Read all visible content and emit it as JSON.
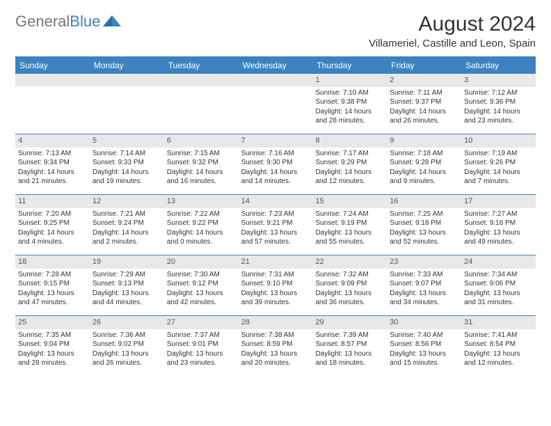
{
  "brand": {
    "part1": "General",
    "part2": "Blue"
  },
  "title": "August 2024",
  "location": "Villameriel, Castille and Leon, Spain",
  "colors": {
    "header_bg": "#3b83c0",
    "header_text": "#ffffff",
    "daynum_bg": "#e8e8e8",
    "border": "#3b83c0",
    "text": "#333333"
  },
  "dayNames": [
    "Sunday",
    "Monday",
    "Tuesday",
    "Wednesday",
    "Thursday",
    "Friday",
    "Saturday"
  ],
  "weeks": [
    [
      null,
      null,
      null,
      null,
      {
        "n": "1",
        "sr": "7:10 AM",
        "ss": "9:38 PM",
        "dl": "14 hours and 28 minutes."
      },
      {
        "n": "2",
        "sr": "7:11 AM",
        "ss": "9:37 PM",
        "dl": "14 hours and 26 minutes."
      },
      {
        "n": "3",
        "sr": "7:12 AM",
        "ss": "9:36 PM",
        "dl": "14 hours and 23 minutes."
      }
    ],
    [
      {
        "n": "4",
        "sr": "7:13 AM",
        "ss": "9:34 PM",
        "dl": "14 hours and 21 minutes."
      },
      {
        "n": "5",
        "sr": "7:14 AM",
        "ss": "9:33 PM",
        "dl": "14 hours and 19 minutes."
      },
      {
        "n": "6",
        "sr": "7:15 AM",
        "ss": "9:32 PM",
        "dl": "14 hours and 16 minutes."
      },
      {
        "n": "7",
        "sr": "7:16 AM",
        "ss": "9:30 PM",
        "dl": "14 hours and 14 minutes."
      },
      {
        "n": "8",
        "sr": "7:17 AM",
        "ss": "9:29 PM",
        "dl": "14 hours and 12 minutes."
      },
      {
        "n": "9",
        "sr": "7:18 AM",
        "ss": "9:28 PM",
        "dl": "14 hours and 9 minutes."
      },
      {
        "n": "10",
        "sr": "7:19 AM",
        "ss": "9:26 PM",
        "dl": "14 hours and 7 minutes."
      }
    ],
    [
      {
        "n": "11",
        "sr": "7:20 AM",
        "ss": "9:25 PM",
        "dl": "14 hours and 4 minutes."
      },
      {
        "n": "12",
        "sr": "7:21 AM",
        "ss": "9:24 PM",
        "dl": "14 hours and 2 minutes."
      },
      {
        "n": "13",
        "sr": "7:22 AM",
        "ss": "9:22 PM",
        "dl": "14 hours and 0 minutes."
      },
      {
        "n": "14",
        "sr": "7:23 AM",
        "ss": "9:21 PM",
        "dl": "13 hours and 57 minutes."
      },
      {
        "n": "15",
        "sr": "7:24 AM",
        "ss": "9:19 PM",
        "dl": "13 hours and 55 minutes."
      },
      {
        "n": "16",
        "sr": "7:25 AM",
        "ss": "9:18 PM",
        "dl": "13 hours and 52 minutes."
      },
      {
        "n": "17",
        "sr": "7:27 AM",
        "ss": "9:16 PM",
        "dl": "13 hours and 49 minutes."
      }
    ],
    [
      {
        "n": "18",
        "sr": "7:28 AM",
        "ss": "9:15 PM",
        "dl": "13 hours and 47 minutes."
      },
      {
        "n": "19",
        "sr": "7:29 AM",
        "ss": "9:13 PM",
        "dl": "13 hours and 44 minutes."
      },
      {
        "n": "20",
        "sr": "7:30 AM",
        "ss": "9:12 PM",
        "dl": "13 hours and 42 minutes."
      },
      {
        "n": "21",
        "sr": "7:31 AM",
        "ss": "9:10 PM",
        "dl": "13 hours and 39 minutes."
      },
      {
        "n": "22",
        "sr": "7:32 AM",
        "ss": "9:09 PM",
        "dl": "13 hours and 36 minutes."
      },
      {
        "n": "23",
        "sr": "7:33 AM",
        "ss": "9:07 PM",
        "dl": "13 hours and 34 minutes."
      },
      {
        "n": "24",
        "sr": "7:34 AM",
        "ss": "9:06 PM",
        "dl": "13 hours and 31 minutes."
      }
    ],
    [
      {
        "n": "25",
        "sr": "7:35 AM",
        "ss": "9:04 PM",
        "dl": "13 hours and 28 minutes."
      },
      {
        "n": "26",
        "sr": "7:36 AM",
        "ss": "9:02 PM",
        "dl": "13 hours and 26 minutes."
      },
      {
        "n": "27",
        "sr": "7:37 AM",
        "ss": "9:01 PM",
        "dl": "13 hours and 23 minutes."
      },
      {
        "n": "28",
        "sr": "7:38 AM",
        "ss": "8:59 PM",
        "dl": "13 hours and 20 minutes."
      },
      {
        "n": "29",
        "sr": "7:39 AM",
        "ss": "8:57 PM",
        "dl": "13 hours and 18 minutes."
      },
      {
        "n": "30",
        "sr": "7:40 AM",
        "ss": "8:56 PM",
        "dl": "13 hours and 15 minutes."
      },
      {
        "n": "31",
        "sr": "7:41 AM",
        "ss": "8:54 PM",
        "dl": "13 hours and 12 minutes."
      }
    ]
  ],
  "labels": {
    "sunrise": "Sunrise:",
    "sunset": "Sunset:",
    "daylight": "Daylight:"
  }
}
